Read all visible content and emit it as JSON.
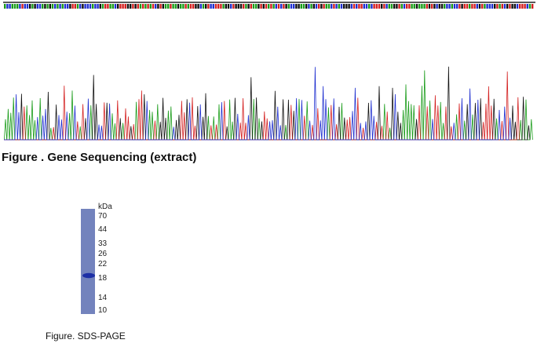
{
  "sequencing": {
    "caption": "Figure . Gene Sequencing (extract)"
  },
  "gel": {
    "unit": "kDa",
    "markers": [
      70,
      44,
      33,
      26,
      22,
      18,
      14,
      10
    ],
    "caption": "Figure. SDS-PAGE"
  }
}
